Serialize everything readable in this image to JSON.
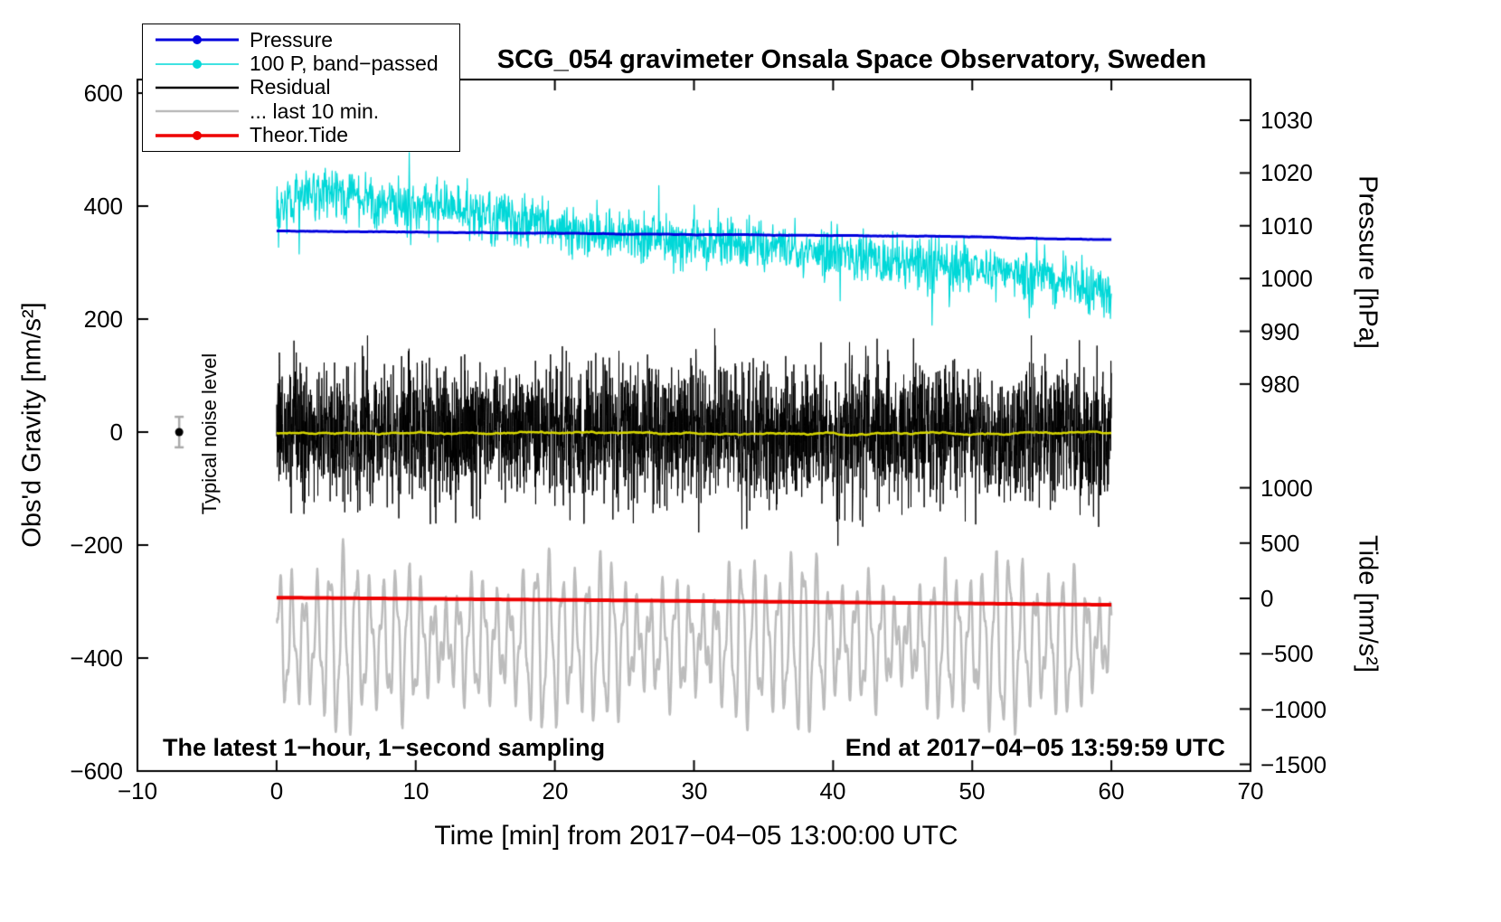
{
  "legend": {
    "items": [
      {
        "label": "Pressure",
        "color": "#0000dd",
        "marker": "line-dot"
      },
      {
        "label": "100 P, band−passed",
        "color": "#00d8d8",
        "marker": "line-dot"
      },
      {
        "label": "Residual",
        "color": "#000000",
        "marker": "line"
      },
      {
        "label": "... last 10 min.",
        "color": "#bcbcbc",
        "marker": "line"
      },
      {
        "label": "Theor.Tide",
        "color": "#ee0000",
        "marker": "line-dot"
      }
    ]
  },
  "annotations": {
    "noise_level_label": "Typical noise level",
    "sampling_note": "The latest 1−hour, 1−second sampling",
    "end_time_note": "End at 2017−04−05 13:59:59 UTC"
  },
  "chart_data": {
    "type": "line",
    "title": "SCG_054 gravimeter Onsala Space Observatory, Sweden",
    "xlabel": "Time [min] from 2017−04−05 13:00:00 UTC",
    "ylabel": "Obs'd Gravity [nm/s²]",
    "axes": {
      "x": {
        "label": "Time [min] from 2017−04−05 13:00:00 UTC",
        "range": [
          -10,
          70
        ],
        "ticks": [
          -10,
          0,
          10,
          20,
          30,
          40,
          50,
          60,
          70
        ],
        "tick_labels": [
          "−10",
          "0",
          "10",
          "20",
          "30",
          "40",
          "50",
          "60",
          "70"
        ]
      },
      "left": {
        "label": "Obs'd Gravity [nm/s²]",
        "range": [
          -600,
          624
        ],
        "ticks": [
          600,
          400,
          200,
          0,
          -200,
          -400,
          -600
        ],
        "tick_labels": [
          "600",
          "400",
          "200",
          "0",
          "−200",
          "−400",
          "−600"
        ]
      },
      "pressure": {
        "label": "Pressure [hPa]",
        "ticks": [
          1030,
          1020,
          1010,
          1000,
          990,
          980
        ],
        "tick_labels": [
          "1030",
          "1020",
          "1010",
          "1000",
          "990",
          "980"
        ],
        "to_left_units": {
          "offset_hpa": 970.9,
          "scale": 9.34
        }
      },
      "tide": {
        "label": "Tide [nm/s²]",
        "ticks": [
          1000,
          500,
          0,
          -500,
          -1000,
          -1500
        ],
        "tick_labels": [
          "1000",
          "500",
          "0",
          "−500",
          "−1000",
          "−1500"
        ],
        "to_left_units": {
          "offset": -294.4,
          "scale": 0.1958
        }
      }
    },
    "series": [
      {
        "name": "100 P, band−passed",
        "axis": "left",
        "kind": "noisy-anchors",
        "color": "#00d8d8",
        "width": 1.2,
        "seed": 22,
        "points": 1700,
        "x_range": [
          0,
          60
        ],
        "anchors_x": [
          0,
          3,
          6,
          9,
          12,
          15,
          18,
          21,
          24,
          27,
          30,
          33,
          36,
          39,
          42,
          45,
          48,
          51,
          54,
          57,
          60
        ],
        "anchors": [
          405,
          425,
          412,
          402,
          398,
          388,
          375,
          360,
          352,
          344,
          338,
          333,
          328,
          318,
          310,
          304,
          299,
          293,
          282,
          265,
          243
        ],
        "noise_amp": 22,
        "spike_prob": 0.012,
        "spike_amp": 70
      },
      {
        "name": "Pressure",
        "axis": "pressure",
        "kind": "walk-anchors",
        "color": "#0000dd",
        "width": 3,
        "seed": 11,
        "points": 900,
        "x_range": [
          0,
          60
        ],
        "anchors_x": [
          0,
          10,
          20,
          30,
          40,
          50,
          60
        ],
        "anchors": [
          1009.0,
          1008.8,
          1008.6,
          1008.4,
          1008.2,
          1007.9,
          1007.3
        ],
        "walk_amp": 1.3
      },
      {
        "name": "Residual",
        "axis": "left",
        "kind": "noise",
        "color": "#000000",
        "width": 1,
        "seed": 33,
        "points": 3600,
        "x_range": [
          0,
          60
        ],
        "mean": 0,
        "noise_amp": 60,
        "spike_prob": 0.004,
        "spike_amp": 110
      },
      {
        "name": "Residual, low−passed",
        "axis": "left",
        "kind": "walk-anchors",
        "color": "#d6d600",
        "width": 2.5,
        "seed": 44,
        "points": 900,
        "x_range": [
          0,
          60
        ],
        "anchors_x": [
          0,
          60
        ],
        "anchors": [
          -2,
          -2
        ],
        "walk_amp": 5
      },
      {
        "name": "... last 10 min.",
        "axis": "left",
        "kind": "osc",
        "color": "#bcbcbc",
        "width": 2.5,
        "seed": 55,
        "points": 2400,
        "x_range": [
          0,
          60
        ],
        "baseline": -372,
        "amp_main": [
          40,
          145
        ],
        "period_main": 0.92,
        "amp2": 36,
        "period2": 0.37
      },
      {
        "name": "Theor.Tide",
        "axis": "tide",
        "kind": "smooth-anchors",
        "color": "#ee0000",
        "width": 4,
        "seed": 66,
        "points": 300,
        "x_range": [
          0,
          60
        ],
        "anchors_x": [
          0,
          10,
          20,
          30,
          40,
          50,
          60
        ],
        "anchors": [
          7,
          -3,
          -13,
          -24,
          -35,
          -46,
          -58
        ]
      }
    ],
    "noise_marker": {
      "x": -7,
      "value": 0,
      "error": 27,
      "dot_color": "#000000",
      "bar_color": "#aaaaaa",
      "label": "Typical noise level"
    }
  }
}
